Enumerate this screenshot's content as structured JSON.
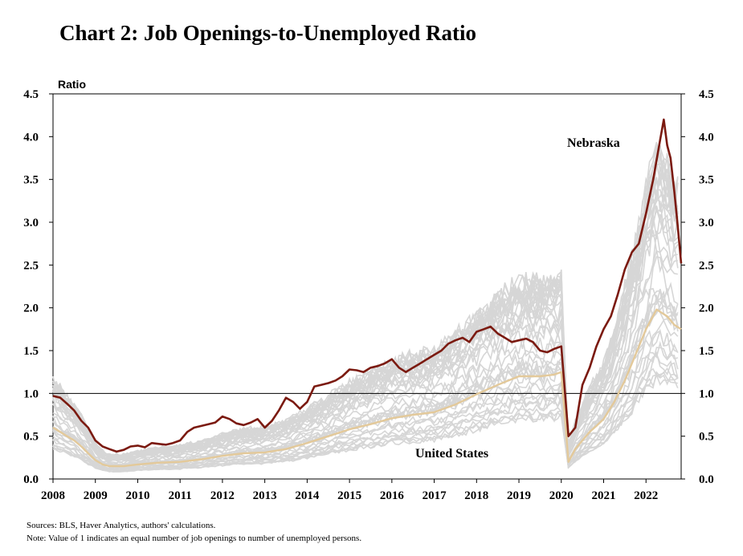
{
  "title": "Chart 2: Job Openings-to-Unemployed Ratio",
  "sources": "Sources: BLS,  Haver Analytics, authors' calculations.",
  "note": "Note: Value of 1 indicates an equal number of job openings to number of unemployed persons.",
  "chart_data": {
    "type": "line",
    "ylabel": "Ratio",
    "ylim": [
      0,
      4.5
    ],
    "xlim": [
      2008,
      2022.83
    ],
    "yticks": [
      "0.0",
      "0.5",
      "1.0",
      "1.5",
      "2.0",
      "2.5",
      "3.0",
      "3.5",
      "4.0",
      "4.5"
    ],
    "xticks": [
      "2008",
      "2009",
      "2010",
      "2011",
      "2012",
      "2013",
      "2014",
      "2015",
      "2016",
      "2017",
      "2018",
      "2019",
      "2020",
      "2021",
      "2022"
    ],
    "reference_line": 1.0,
    "grid": false,
    "colors": {
      "nebraska": "#7b1a10",
      "united_states": "#e3c99a",
      "states": "#d6d6d6"
    },
    "annotations": {
      "nebraska": "Nebraska",
      "united_states": "United States"
    },
    "series": [
      {
        "name": "Nebraska",
        "x": [
          2008.0,
          2008.17,
          2008.33,
          2008.5,
          2008.67,
          2008.83,
          2009.0,
          2009.17,
          2009.33,
          2009.5,
          2009.67,
          2009.83,
          2010.0,
          2010.17,
          2010.33,
          2010.5,
          2010.67,
          2010.83,
          2011.0,
          2011.17,
          2011.33,
          2011.5,
          2011.67,
          2011.83,
          2012.0,
          2012.17,
          2012.33,
          2012.5,
          2012.67,
          2012.83,
          2013.0,
          2013.17,
          2013.33,
          2013.5,
          2013.67,
          2013.83,
          2014.0,
          2014.17,
          2014.33,
          2014.5,
          2014.67,
          2014.83,
          2015.0,
          2015.17,
          2015.33,
          2015.5,
          2015.67,
          2015.83,
          2016.0,
          2016.17,
          2016.33,
          2016.5,
          2016.67,
          2016.83,
          2017.0,
          2017.17,
          2017.33,
          2017.5,
          2017.67,
          2017.83,
          2018.0,
          2018.17,
          2018.33,
          2018.5,
          2018.67,
          2018.83,
          2019.0,
          2019.17,
          2019.33,
          2019.5,
          2019.67,
          2019.83,
          2020.0,
          2020.17,
          2020.33,
          2020.5,
          2020.67,
          2020.83,
          2021.0,
          2021.17,
          2021.33,
          2021.5,
          2021.67,
          2021.83,
          2022.0,
          2022.17,
          2022.33,
          2022.42,
          2022.5,
          2022.58,
          2022.67,
          2022.75,
          2022.83
        ],
        "y": [
          0.97,
          0.95,
          0.88,
          0.8,
          0.68,
          0.6,
          0.45,
          0.38,
          0.35,
          0.32,
          0.34,
          0.38,
          0.39,
          0.37,
          0.42,
          0.41,
          0.4,
          0.42,
          0.45,
          0.55,
          0.6,
          0.62,
          0.64,
          0.66,
          0.73,
          0.7,
          0.65,
          0.63,
          0.66,
          0.7,
          0.6,
          0.68,
          0.8,
          0.95,
          0.9,
          0.82,
          0.9,
          1.08,
          1.1,
          1.12,
          1.15,
          1.2,
          1.28,
          1.27,
          1.25,
          1.3,
          1.32,
          1.35,
          1.4,
          1.3,
          1.25,
          1.3,
          1.35,
          1.4,
          1.45,
          1.5,
          1.58,
          1.62,
          1.65,
          1.6,
          1.72,
          1.75,
          1.78,
          1.7,
          1.65,
          1.6,
          1.62,
          1.64,
          1.6,
          1.5,
          1.48,
          1.52,
          1.55,
          0.5,
          0.6,
          1.1,
          1.3,
          1.55,
          1.75,
          1.9,
          2.15,
          2.45,
          2.65,
          2.75,
          3.1,
          3.5,
          3.95,
          4.2,
          3.9,
          3.75,
          3.35,
          2.95,
          2.52
        ]
      },
      {
        "name": "United States",
        "x": [
          2008.0,
          2008.17,
          2008.33,
          2008.5,
          2008.67,
          2008.83,
          2009.0,
          2009.17,
          2009.33,
          2009.5,
          2009.67,
          2009.83,
          2010.0,
          2010.5,
          2011.0,
          2011.5,
          2012.0,
          2012.5,
          2013.0,
          2013.5,
          2014.0,
          2014.5,
          2015.0,
          2015.5,
          2016.0,
          2016.5,
          2017.0,
          2017.5,
          2018.0,
          2018.5,
          2019.0,
          2019.5,
          2019.83,
          2020.0,
          2020.17,
          2020.33,
          2020.5,
          2020.67,
          2020.83,
          2021.0,
          2021.25,
          2021.5,
          2021.75,
          2022.0,
          2022.25,
          2022.5,
          2022.67,
          2022.83
        ],
        "y": [
          0.6,
          0.55,
          0.5,
          0.45,
          0.38,
          0.3,
          0.22,
          0.17,
          0.15,
          0.15,
          0.15,
          0.16,
          0.17,
          0.19,
          0.2,
          0.23,
          0.27,
          0.3,
          0.31,
          0.35,
          0.42,
          0.5,
          0.58,
          0.64,
          0.71,
          0.75,
          0.78,
          0.87,
          0.99,
          1.1,
          1.2,
          1.2,
          1.22,
          1.25,
          0.2,
          0.35,
          0.45,
          0.55,
          0.62,
          0.7,
          0.9,
          1.15,
          1.45,
          1.75,
          1.98,
          1.9,
          1.8,
          1.75
        ]
      }
    ]
  }
}
